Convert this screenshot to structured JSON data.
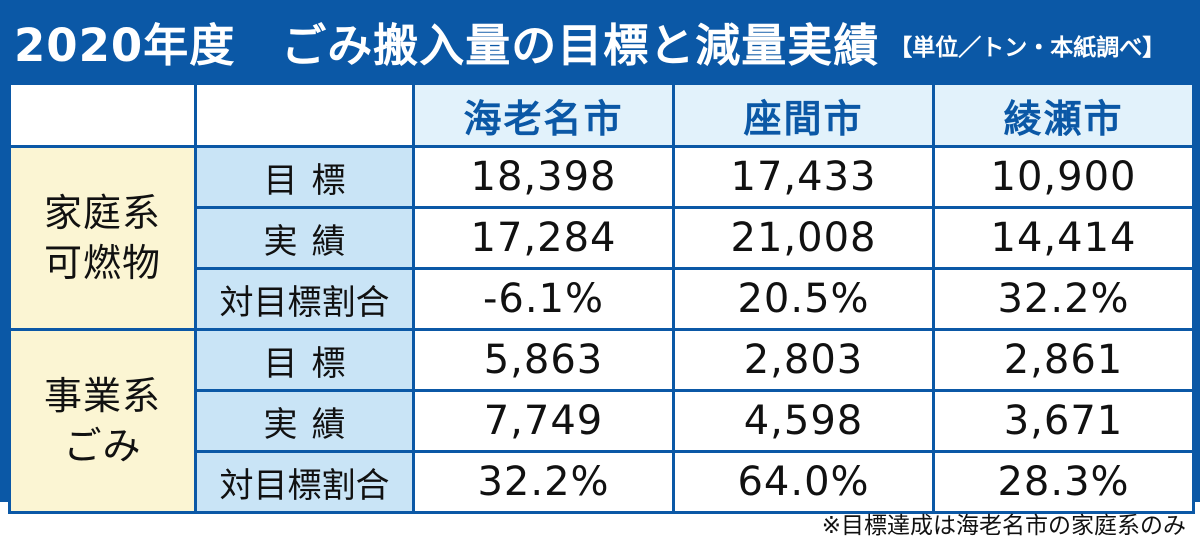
{
  "header": {
    "title": "2020年度　ごみ搬入量の目標と減量実績",
    "unit_note": "【単位／トン・本紙調べ】"
  },
  "table": {
    "columns": [
      "海老名市",
      "座間市",
      "綾瀬市"
    ],
    "groups": [
      {
        "label_line1": "家庭系",
        "label_line2": "可燃物",
        "rows": [
          {
            "label": "目標",
            "values": [
              "18,398",
              "17,433",
              "10,900"
            ]
          },
          {
            "label": "実績",
            "values": [
              "17,284",
              "21,008",
              "14,414"
            ]
          },
          {
            "label": "対目標割合",
            "values": [
              "-6.1%",
              "20.5%",
              "32.2%"
            ]
          }
        ]
      },
      {
        "label_line1": "事業系",
        "label_line2": "ごみ",
        "rows": [
          {
            "label": "目標",
            "values": [
              "5,863",
              "2,803",
              "2,861"
            ]
          },
          {
            "label": "実績",
            "values": [
              "7,749",
              "4,598",
              "3,671"
            ]
          },
          {
            "label": "対目標割合",
            "values": [
              "32.2%",
              "64.0%",
              "28.3%"
            ]
          }
        ]
      }
    ]
  },
  "footnote": "※目標達成は海老名市の家庭系のみ",
  "colors": {
    "frame": "#0b58a6",
    "city_header_bg": "#e2f2fb",
    "row_label_bg": "#c9e4f6",
    "group_label_bg": "#fbf5d3"
  }
}
